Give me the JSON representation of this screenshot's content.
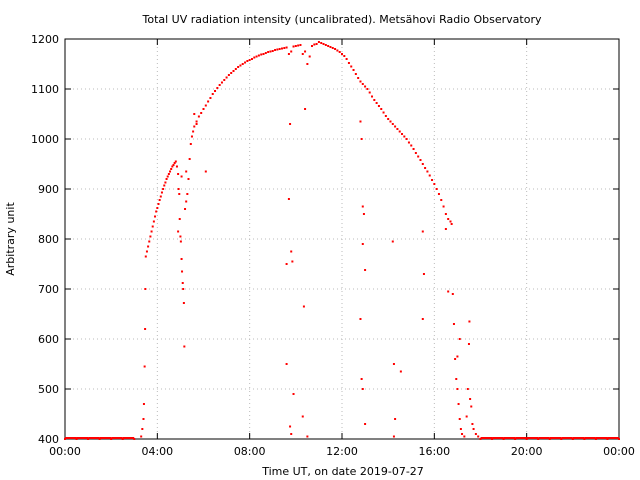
{
  "chart_data": {
    "type": "scatter",
    "title": "Total UV radiation intensity (uncalibrated). Metsähovi Radio Observatory",
    "xlabel": "Time UT, on date 2019-07-27",
    "ylabel": "Arbitrary unit",
    "xlim_hours": [
      0,
      24
    ],
    "ylim": [
      400,
      1200
    ],
    "x_ticks": [
      {
        "hours": 0,
        "label": "00:00"
      },
      {
        "hours": 4,
        "label": "04:00"
      },
      {
        "hours": 8,
        "label": "08:00"
      },
      {
        "hours": 12,
        "label": "12:00"
      },
      {
        "hours": 16,
        "label": "16:00"
      },
      {
        "hours": 20,
        "label": "20:00"
      },
      {
        "hours": 24,
        "label": "00:00"
      }
    ],
    "y_ticks": [
      400,
      500,
      600,
      700,
      800,
      900,
      1000,
      1100,
      1200
    ],
    "grid": true,
    "series_color": "#ff0000",
    "series": [
      {
        "points": [
          [
            3.3,
            405
          ],
          [
            3.35,
            420
          ],
          [
            3.4,
            440
          ],
          [
            3.42,
            470
          ],
          [
            3.45,
            545
          ],
          [
            3.47,
            620
          ],
          [
            3.48,
            700
          ],
          [
            3.5,
            765
          ],
          [
            3.55,
            775
          ],
          [
            3.6,
            785
          ],
          [
            3.65,
            795
          ],
          [
            3.7,
            805
          ],
          [
            3.75,
            815
          ],
          [
            3.8,
            825
          ],
          [
            3.85,
            835
          ],
          [
            3.9,
            845
          ],
          [
            3.95,
            855
          ],
          [
            4.0,
            862
          ],
          [
            4.05,
            870
          ],
          [
            4.1,
            878
          ],
          [
            4.15,
            885
          ],
          [
            4.2,
            893
          ],
          [
            4.25,
            900
          ],
          [
            4.3,
            907
          ],
          [
            4.35,
            913
          ],
          [
            4.4,
            920
          ],
          [
            4.45,
            925
          ],
          [
            4.5,
            930
          ],
          [
            4.55,
            935
          ],
          [
            4.6,
            940
          ],
          [
            4.65,
            945
          ],
          [
            4.7,
            948
          ],
          [
            4.75,
            952
          ],
          [
            4.8,
            955
          ],
          [
            4.85,
            945
          ],
          [
            4.9,
            930
          ],
          [
            4.92,
            900
          ],
          [
            4.95,
            890
          ],
          [
            4.97,
            840
          ],
          [
            5.0,
            805
          ],
          [
            5.02,
            795
          ],
          [
            5.05,
            760
          ],
          [
            5.07,
            735
          ],
          [
            5.1,
            712
          ],
          [
            5.12,
            700
          ],
          [
            5.15,
            672
          ],
          [
            5.17,
            585
          ],
          [
            5.2,
            860
          ],
          [
            5.25,
            875
          ],
          [
            5.3,
            890
          ],
          [
            5.35,
            920
          ],
          [
            5.4,
            960
          ],
          [
            5.45,
            990
          ],
          [
            5.5,
            1005
          ],
          [
            5.55,
            1015
          ],
          [
            5.6,
            1025
          ],
          [
            5.7,
            1035
          ],
          [
            5.8,
            1045
          ],
          [
            5.9,
            1052
          ],
          [
            6.0,
            1060
          ],
          [
            6.1,
            1067
          ],
          [
            6.2,
            1075
          ],
          [
            6.3,
            1082
          ],
          [
            6.4,
            1090
          ],
          [
            6.5,
            1096
          ],
          [
            6.6,
            1102
          ],
          [
            6.7,
            1108
          ],
          [
            6.8,
            1113
          ],
          [
            6.9,
            1118
          ],
          [
            7.0,
            1123
          ],
          [
            7.1,
            1128
          ],
          [
            7.2,
            1132
          ],
          [
            7.3,
            1136
          ],
          [
            7.4,
            1140
          ],
          [
            7.5,
            1144
          ],
          [
            7.6,
            1147
          ],
          [
            7.7,
            1150
          ],
          [
            7.8,
            1153
          ],
          [
            7.9,
            1156
          ],
          [
            8.0,
            1158
          ],
          [
            8.1,
            1160
          ],
          [
            8.2,
            1163
          ],
          [
            8.3,
            1165
          ],
          [
            8.4,
            1167
          ],
          [
            8.5,
            1169
          ],
          [
            8.6,
            1170
          ],
          [
            8.7,
            1172
          ],
          [
            8.8,
            1174
          ],
          [
            8.9,
            1175
          ],
          [
            9.0,
            1176
          ],
          [
            9.1,
            1178
          ],
          [
            9.2,
            1179
          ],
          [
            9.3,
            1180
          ],
          [
            9.4,
            1181
          ],
          [
            9.5,
            1182
          ],
          [
            9.6,
            1183
          ],
          [
            9.7,
            1170
          ],
          [
            9.8,
            1175
          ],
          [
            9.9,
            1185
          ],
          [
            10.0,
            1186
          ],
          [
            10.1,
            1187
          ],
          [
            10.2,
            1188
          ],
          [
            10.3,
            1170
          ],
          [
            10.4,
            1175
          ],
          [
            10.5,
            1150
          ],
          [
            10.6,
            1165
          ],
          [
            10.7,
            1186
          ],
          [
            10.8,
            1189
          ],
          [
            10.9,
            1190
          ],
          [
            11.0,
            1194
          ],
          [
            11.1,
            1192
          ],
          [
            11.2,
            1190
          ],
          [
            11.3,
            1188
          ],
          [
            11.4,
            1186
          ],
          [
            11.5,
            1184
          ],
          [
            11.6,
            1182
          ],
          [
            11.7,
            1180
          ],
          [
            11.8,
            1177
          ],
          [
            11.9,
            1174
          ],
          [
            12.0,
            1170
          ],
          [
            12.1,
            1166
          ],
          [
            12.2,
            1160
          ],
          [
            12.3,
            1152
          ],
          [
            12.4,
            1145
          ],
          [
            12.5,
            1138
          ],
          [
            12.6,
            1130
          ],
          [
            12.7,
            1122
          ],
          [
            12.8,
            1115
          ],
          [
            12.9,
            1110
          ],
          [
            13.0,
            1105
          ],
          [
            13.1,
            1100
          ],
          [
            13.2,
            1093
          ],
          [
            13.3,
            1085
          ],
          [
            13.4,
            1078
          ],
          [
            13.5,
            1072
          ],
          [
            13.6,
            1066
          ],
          [
            13.7,
            1060
          ],
          [
            13.8,
            1053
          ],
          [
            13.9,
            1046
          ],
          [
            14.0,
            1040
          ],
          [
            14.1,
            1035
          ],
          [
            14.2,
            1030
          ],
          [
            14.3,
            1025
          ],
          [
            14.4,
            1020
          ],
          [
            14.5,
            1015
          ],
          [
            14.6,
            1010
          ],
          [
            14.7,
            1005
          ],
          [
            14.8,
            1000
          ],
          [
            14.9,
            993
          ],
          [
            15.0,
            987
          ],
          [
            15.1,
            980
          ],
          [
            15.2,
            972
          ],
          [
            15.3,
            965
          ],
          [
            15.4,
            958
          ],
          [
            15.5,
            950
          ],
          [
            15.6,
            942
          ],
          [
            15.7,
            935
          ],
          [
            15.8,
            927
          ],
          [
            15.9,
            918
          ],
          [
            16.0,
            910
          ],
          [
            16.1,
            900
          ],
          [
            16.2,
            890
          ],
          [
            16.3,
            878
          ],
          [
            16.4,
            865
          ],
          [
            16.5,
            850
          ],
          [
            16.6,
            840
          ],
          [
            16.7,
            835
          ],
          [
            16.75,
            830
          ],
          [
            16.8,
            690
          ],
          [
            16.85,
            630
          ],
          [
            16.9,
            560
          ],
          [
            16.95,
            520
          ],
          [
            17.0,
            500
          ],
          [
            17.05,
            470
          ],
          [
            17.1,
            440
          ],
          [
            17.15,
            420
          ],
          [
            17.2,
            410
          ],
          [
            17.3,
            405
          ],
          [
            17.4,
            445
          ],
          [
            17.45,
            500
          ],
          [
            17.5,
            590
          ],
          [
            17.52,
            635
          ],
          [
            17.55,
            480
          ],
          [
            17.6,
            465
          ],
          [
            17.65,
            430
          ],
          [
            17.7,
            420
          ],
          [
            17.8,
            410
          ],
          [
            17.9,
            405
          ]
        ]
      },
      {
        "points": [
          [
            4.9,
            815
          ],
          [
            5.05,
            925
          ],
          [
            5.25,
            935
          ],
          [
            5.6,
            1050
          ],
          [
            5.7,
            1030
          ],
          [
            6.1,
            935
          ],
          [
            9.6,
            750
          ],
          [
            9.7,
            880
          ],
          [
            9.75,
            1030
          ],
          [
            9.8,
            775
          ],
          [
            9.85,
            755
          ],
          [
            9.6,
            550
          ],
          [
            9.9,
            490
          ],
          [
            9.75,
            425
          ],
          [
            9.8,
            410
          ],
          [
            10.3,
            445
          ],
          [
            10.35,
            665
          ],
          [
            10.4,
            1060
          ],
          [
            10.5,
            405
          ],
          [
            12.8,
            1035
          ],
          [
            12.85,
            1000
          ],
          [
            12.9,
            865
          ],
          [
            12.95,
            850
          ],
          [
            12.9,
            790
          ],
          [
            13.0,
            738
          ],
          [
            12.8,
            640
          ],
          [
            12.85,
            520
          ],
          [
            12.9,
            500
          ],
          [
            13.0,
            430
          ],
          [
            14.2,
            795
          ],
          [
            14.25,
            550
          ],
          [
            14.3,
            440
          ],
          [
            14.25,
            405
          ],
          [
            14.55,
            535
          ],
          [
            15.5,
            815
          ],
          [
            15.55,
            730
          ],
          [
            15.5,
            640
          ],
          [
            16.6,
            695
          ],
          [
            16.5,
            820
          ],
          [
            17.1,
            600
          ],
          [
            17.0,
            565
          ]
        ]
      },
      {
        "points": [
          [
            0.0,
            400
          ],
          [
            0.5,
            400
          ],
          [
            1.0,
            400
          ],
          [
            1.5,
            400
          ],
          [
            2.0,
            400
          ],
          [
            2.5,
            400
          ],
          [
            3.0,
            400
          ],
          [
            18.0,
            400
          ],
          [
            18.5,
            400
          ],
          [
            19.0,
            400
          ],
          [
            19.5,
            400
          ],
          [
            20.0,
            400
          ],
          [
            20.5,
            400
          ],
          [
            21.0,
            400
          ],
          [
            21.5,
            400
          ],
          [
            22.0,
            400
          ],
          [
            22.5,
            400
          ],
          [
            23.0,
            400
          ],
          [
            23.5,
            400
          ],
          [
            24.0,
            400
          ]
        ]
      }
    ]
  }
}
